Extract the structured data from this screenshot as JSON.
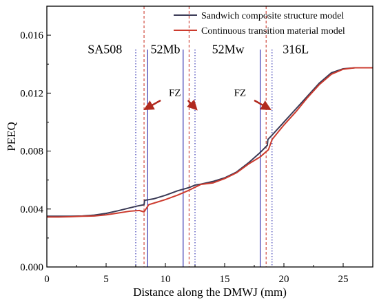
{
  "chart_data": {
    "type": "line",
    "title": "",
    "xlabel": "Distance along the DMWJ (mm)",
    "ylabel": "PEEQ",
    "xlim": [
      0,
      27.5
    ],
    "ylim": [
      0,
      0.018
    ],
    "x_ticks": [
      0,
      5,
      10,
      15,
      20,
      25
    ],
    "x_tick_labels": [
      "0",
      "5",
      "10",
      "15",
      "20",
      "25"
    ],
    "y_ticks": [
      0,
      0.004,
      0.008,
      0.012,
      0.016
    ],
    "y_tick_labels": [
      "0.000",
      "0.004",
      "0.008",
      "0.012",
      "0.016"
    ],
    "grid": false,
    "legend_position": "top-right",
    "series": [
      {
        "name": "Sandwich composite structure model",
        "color": "#3a3a55",
        "points": [
          [
            0,
            0.0035
          ],
          [
            1,
            0.0035
          ],
          [
            2,
            0.0035
          ],
          [
            3,
            0.00352
          ],
          [
            4,
            0.00358
          ],
          [
            5,
            0.0037
          ],
          [
            6,
            0.00388
          ],
          [
            7,
            0.00408
          ],
          [
            7.6,
            0.0042
          ],
          [
            8.2,
            0.0043
          ],
          [
            8.25,
            0.0046
          ],
          [
            9,
            0.0047
          ],
          [
            10,
            0.00495
          ],
          [
            11,
            0.00525
          ],
          [
            12,
            0.00548
          ],
          [
            12.5,
            0.00565
          ],
          [
            13,
            0.00572
          ],
          [
            14,
            0.0059
          ],
          [
            15,
            0.00615
          ],
          [
            16,
            0.00655
          ],
          [
            17,
            0.00718
          ],
          [
            18,
            0.0079
          ],
          [
            18.6,
            0.0084
          ],
          [
            18.65,
            0.0088
          ],
          [
            19,
            0.0091
          ],
          [
            20,
            0.01
          ],
          [
            21,
            0.0109
          ],
          [
            22,
            0.0118
          ],
          [
            23,
            0.0127
          ],
          [
            24,
            0.0134
          ],
          [
            25,
            0.01368
          ],
          [
            26,
            0.01375
          ],
          [
            27.5,
            0.01375
          ]
        ]
      },
      {
        "name": "Continuous transition material model",
        "color": "#cc3b2e",
        "points": [
          [
            0,
            0.00345
          ],
          [
            1,
            0.00345
          ],
          [
            2,
            0.00347
          ],
          [
            3,
            0.0035
          ],
          [
            4,
            0.00352
          ],
          [
            5,
            0.0036
          ],
          [
            6,
            0.00372
          ],
          [
            7,
            0.00385
          ],
          [
            7.8,
            0.0039
          ],
          [
            8.2,
            0.0038
          ],
          [
            8.6,
            0.0043
          ],
          [
            9,
            0.0044
          ],
          [
            10,
            0.00465
          ],
          [
            11,
            0.00495
          ],
          [
            12,
            0.0053
          ],
          [
            12.5,
            0.0055
          ],
          [
            13,
            0.0057
          ],
          [
            14,
            0.0058
          ],
          [
            15,
            0.0061
          ],
          [
            16,
            0.0065
          ],
          [
            17,
            0.0071
          ],
          [
            18,
            0.0076
          ],
          [
            18.7,
            0.0081
          ],
          [
            19,
            0.0088
          ],
          [
            20,
            0.0098
          ],
          [
            21,
            0.0107
          ],
          [
            22,
            0.0117
          ],
          [
            23,
            0.0126
          ],
          [
            24,
            0.0133
          ],
          [
            25,
            0.01365
          ],
          [
            26,
            0.01375
          ],
          [
            27.5,
            0.01375
          ]
        ]
      }
    ],
    "vertical_lines": [
      {
        "x": 7.5,
        "color": "#2222aa",
        "style": "dotted"
      },
      {
        "x": 8.5,
        "color": "#2222aa",
        "style": "solid"
      },
      {
        "x": 11.5,
        "color": "#2222aa",
        "style": "solid"
      },
      {
        "x": 12.5,
        "color": "#2222aa",
        "style": "dotted"
      },
      {
        "x": 18.0,
        "color": "#2222aa",
        "style": "solid"
      },
      {
        "x": 19.0,
        "color": "#2222aa",
        "style": "dotted"
      },
      {
        "x": 8.2,
        "color": "#cc3b2e",
        "style": "dashed"
      },
      {
        "x": 12.0,
        "color": "#cc3b2e",
        "style": "dashed"
      },
      {
        "x": 18.5,
        "color": "#cc3b2e",
        "style": "dashed"
      }
    ],
    "region_labels": [
      {
        "text": "SA508",
        "x": 4.9,
        "y": 0.01475
      },
      {
        "text": "52Mb",
        "x": 10.0,
        "y": 0.01475
      },
      {
        "text": "52Mw",
        "x": 15.3,
        "y": 0.01475
      },
      {
        "text": "316L",
        "x": 21.0,
        "y": 0.01475
      }
    ],
    "annotations": [
      {
        "text": "FZ",
        "x": 10.8,
        "y": 0.0118,
        "arrow_from": [
          9.6,
          0.0115
        ],
        "arrow_to": [
          8.3,
          0.0109
        ]
      },
      {
        "text": "FZ",
        "x": 10.8,
        "y": 0.0118,
        "arrow_from": [
          11.9,
          0.0115
        ],
        "arrow_to": [
          12.6,
          0.0109
        ]
      },
      {
        "text": "FZ",
        "x": 16.3,
        "y": 0.0118,
        "arrow_from": [
          17.5,
          0.0115
        ],
        "arrow_to": [
          18.8,
          0.0109
        ]
      }
    ]
  }
}
